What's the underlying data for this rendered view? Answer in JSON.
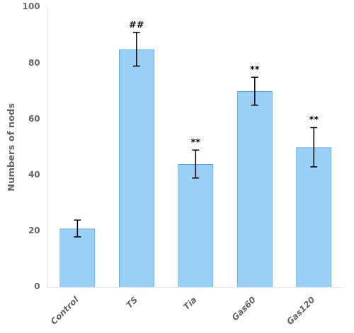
{
  "chart_data": {
    "type": "bar",
    "categories": [
      "Control",
      "TS",
      "Tia",
      "Gas60",
      "Gas120"
    ],
    "values": [
      21,
      85,
      44,
      70,
      50
    ],
    "errors": [
      3,
      6,
      5,
      5,
      7
    ],
    "annotations": [
      null,
      "##",
      "**",
      "**",
      "**"
    ],
    "ylabel": "Numbers of nods",
    "ylim": [
      0,
      100
    ],
    "yticks": [
      0,
      20,
      40,
      60,
      80,
      100
    ],
    "grid": false
  }
}
